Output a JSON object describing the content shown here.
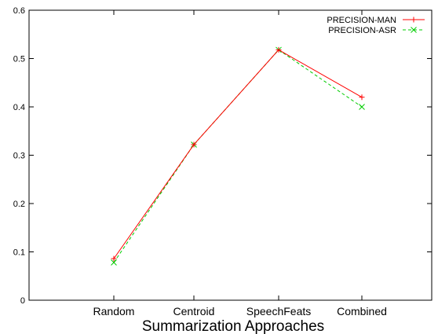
{
  "chart_data": {
    "type": "line",
    "categories": [
      "Random",
      "Centroid",
      "SpeechFeats",
      "Combined"
    ],
    "series": [
      {
        "name": "PRECISION-MAN",
        "values": [
          0.086,
          0.322,
          0.518,
          0.42
        ],
        "color": "#ff0000",
        "dash": "solid",
        "marker": "plus"
      },
      {
        "name": "PRECISION-ASR",
        "values": [
          0.078,
          0.322,
          0.518,
          0.4
        ],
        "color": "#00cc00",
        "dash": "dashed",
        "marker": "x"
      }
    ],
    "title": "",
    "xlabel": "Summarization Approaches",
    "ylabel": "",
    "ylim": [
      0,
      0.6
    ],
    "yticks": [
      0,
      0.1,
      0.2,
      0.3,
      0.4,
      0.5,
      0.6
    ],
    "ytick_labels": [
      "0",
      "0.1",
      "0.2",
      "0.3",
      "0.4",
      "0.5",
      "0.6"
    ],
    "grid": false,
    "legend_position": "top-right"
  }
}
